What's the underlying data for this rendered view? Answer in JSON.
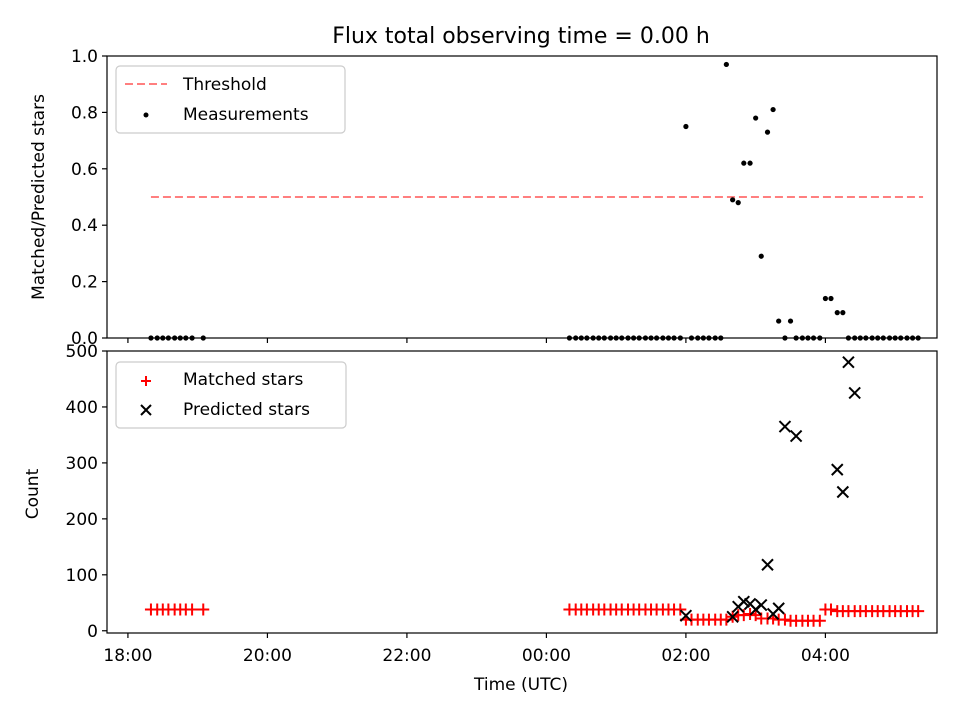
{
  "colors": {
    "threshold": "#ff7f7f",
    "measurements": "#000000",
    "matched": "#ff0000",
    "predicted": "#000000"
  },
  "chart_data": [
    {
      "type": "scatter",
      "title": "Flux total observing time = 0.00 h",
      "xlabel": "",
      "ylabel": "Matched/Predicted stars",
      "xlim": [
        -0.3,
        11.6
      ],
      "ylim": [
        0,
        1.0
      ],
      "yticks": [
        0.0,
        0.2,
        0.4,
        0.6,
        0.8,
        1.0
      ],
      "ytick_labels": [
        "0.0",
        "0.2",
        "0.4",
        "0.6",
        "0.8",
        "1.0"
      ],
      "legend": {
        "position": "top-left",
        "entries": [
          "Threshold",
          "Measurements"
        ]
      },
      "threshold": {
        "name": "Threshold",
        "y": 0.5,
        "x": [
          0.33,
          11.4
        ]
      },
      "measurements": {
        "name": "Measurements",
        "x": [
          0.33,
          0.42,
          0.5,
          0.58,
          0.67,
          0.75,
          0.83,
          0.92,
          1.08,
          6.33,
          6.42,
          6.5,
          6.58,
          6.67,
          6.75,
          6.83,
          6.92,
          7.0,
          7.08,
          7.17,
          7.25,
          7.33,
          7.42,
          7.5,
          7.58,
          7.67,
          7.75,
          7.83,
          7.92,
          8.0,
          8.08,
          8.17,
          8.25,
          8.33,
          8.42,
          8.5,
          8.58,
          8.67,
          8.75,
          8.83,
          8.92,
          9.0,
          9.08,
          9.17,
          9.25,
          9.33,
          9.42,
          9.5,
          9.58,
          9.67,
          9.75,
          9.83,
          9.92,
          10.0,
          10.08,
          10.17,
          10.25,
          10.33,
          10.42,
          10.5,
          10.58,
          10.67,
          10.75,
          10.83,
          10.92,
          11.0,
          11.08,
          11.17,
          11.25,
          11.33
        ],
        "y": [
          0,
          0,
          0,
          0,
          0,
          0,
          0,
          0,
          0,
          0,
          0,
          0,
          0,
          0,
          0,
          0,
          0,
          0,
          0,
          0,
          0,
          0,
          0,
          0,
          0,
          0,
          0,
          0,
          0,
          0.75,
          0,
          0,
          0,
          0,
          0,
          0,
          0.97,
          0.49,
          0.48,
          0.62,
          0.62,
          0.78,
          0.29,
          0.73,
          0.81,
          0.06,
          0,
          0.06,
          0,
          0,
          0,
          0,
          0,
          0.14,
          0.14,
          0.09,
          0.09,
          0,
          0,
          0,
          0,
          0,
          0,
          0,
          0,
          0,
          0,
          0,
          0,
          0
        ]
      }
    },
    {
      "type": "scatter",
      "title": "",
      "xlabel": "Time (UTC)",
      "ylabel": "Count",
      "xlim": [
        -0.3,
        11.6
      ],
      "ylim": [
        -4,
        500
      ],
      "yticks": [
        0,
        100,
        200,
        300,
        400,
        500
      ],
      "ytick_labels": [
        "0",
        "100",
        "200",
        "300",
        "400",
        "500"
      ],
      "xticks": [
        0,
        2,
        4,
        6,
        8,
        10
      ],
      "xtick_labels": [
        "18:00",
        "20:00",
        "22:00",
        "00:00",
        "02:00",
        "04:00"
      ],
      "legend": {
        "position": "top-left",
        "entries": [
          "Matched stars",
          "Predicted stars"
        ]
      },
      "series": [
        {
          "name": "Matched stars",
          "marker": "plus",
          "x": [
            0.33,
            0.42,
            0.5,
            0.58,
            0.67,
            0.75,
            0.83,
            0.92,
            1.08,
            6.33,
            6.42,
            6.5,
            6.58,
            6.67,
            6.75,
            6.83,
            6.92,
            7.0,
            7.08,
            7.17,
            7.25,
            7.33,
            7.42,
            7.5,
            7.58,
            7.67,
            7.75,
            7.83,
            7.92,
            8.0,
            8.08,
            8.17,
            8.25,
            8.33,
            8.42,
            8.5,
            8.58,
            8.67,
            8.75,
            8.83,
            8.92,
            9.0,
            9.08,
            9.17,
            9.25,
            9.33,
            9.42,
            9.5,
            9.58,
            9.67,
            9.75,
            9.83,
            9.92,
            10.0,
            10.08,
            10.17,
            10.25,
            10.33,
            10.42,
            10.5,
            10.58,
            10.67,
            10.75,
            10.83,
            10.92,
            11.0,
            11.08,
            11.17,
            11.25,
            11.33
          ],
          "y": [
            38,
            38,
            38,
            38,
            38,
            38,
            38,
            38,
            38,
            38,
            38,
            38,
            38,
            38,
            38,
            38,
            38,
            38,
            38,
            38,
            38,
            38,
            38,
            38,
            38,
            38,
            38,
            38,
            38,
            20,
            20,
            20,
            20,
            20,
            20,
            20,
            20,
            25,
            28,
            28,
            30,
            28,
            22,
            22,
            22,
            20,
            20,
            18,
            18,
            18,
            18,
            18,
            18,
            38,
            38,
            35,
            35,
            35,
            35,
            35,
            35,
            35,
            35,
            35,
            35,
            35,
            35,
            35,
            35,
            35
          ]
        },
        {
          "name": "Predicted stars",
          "marker": "x",
          "x": [
            8.0,
            8.67,
            8.75,
            8.83,
            8.92,
            9.0,
            9.08,
            9.17,
            9.25,
            9.33,
            9.42,
            9.58,
            10.17,
            10.25,
            10.33,
            10.42
          ],
          "y": [
            27,
            25,
            43,
            52,
            48,
            38,
            46,
            118,
            30,
            40,
            365,
            348,
            288,
            248,
            480,
            425
          ]
        }
      ]
    }
  ]
}
